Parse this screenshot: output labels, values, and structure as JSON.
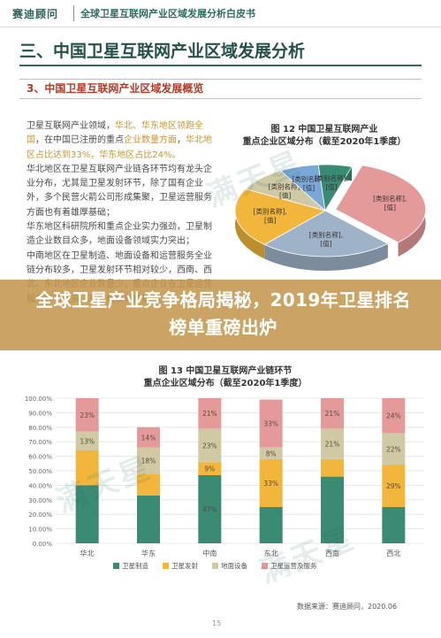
{
  "header": {
    "brand": "赛迪顾问",
    "title": "全球卫星互联网产业区域发展分析白皮书"
  },
  "section_title": "三、中国卫星互联网产业区域发展分析",
  "subsection_title": "3、中国卫星互联网产业区域发展概览",
  "body": {
    "p1_a": "卫星互联网产业领域，",
    "p1_b": "华北、华东地区领跑全国",
    "p1_c": "，在中国已注册的重点",
    "p1_d": "企业数量方面",
    "p1_e": "，",
    "p1_f": "华北地区占比达到33%，华东地区占比24%。",
    "p2": "华北地区在卫星互联网产业链各环节均有龙头企业分布，尤其是卫星发射环节，除了国有企业外，多个民营火箭公司形成集聚，卫星运营服务方面也有着雄厚基础；",
    "p3": "华东地区科研院所和重点企业实力强劲，卫星制造企业数目众多，地面设备领域实力突出；",
    "p4": "中南地区在卫星制造、地面设备和运营服务全业链分布较多，卫星发射环节相对较少，西南、西北、东北地区企业数量少，重点企业在卫星运营服务环节较多，产业规模有待提升。"
  },
  "banner": {
    "text": "全球卫星产业竞争格局揭秘，2019年卫星排名榜单重磅出炉"
  },
  "watermarks": {
    "text": "满天星"
  },
  "chart_data": [
    {
      "type": "pie",
      "title": "图 12  中国卫星互联网产业\n重点企业区域分布（截至2020年1季度）",
      "labels": [
        "[类别名称], [值]",
        "[类别名称], [值]",
        "[类别名称], [值]",
        "[类别名称], [值]",
        "[类别名称], [值]",
        "[类别名称], [值]"
      ],
      "values": [
        33,
        24,
        21,
        9,
        7,
        6
      ],
      "colors": [
        "#e59a9a",
        "#9fb3c8",
        "#f1b63b",
        "#cfc9a4",
        "#7aa7d8",
        "#3a8a74"
      ],
      "note": "labels shown as placeholders in the original"
    },
    {
      "type": "bar",
      "stacked": true,
      "percent": true,
      "title": "图 13  中国卫星互联网产业链环节\n重点企业区域分布（截至2020年1季度）",
      "categories": [
        "华北",
        "华东",
        "中南",
        "东北",
        "西南",
        "西北"
      ],
      "ylim": [
        0,
        100
      ],
      "yticks": [
        "0.00%",
        "10.00%",
        "20.00%",
        "30.00%",
        "40.00%",
        "50.00%",
        "60.00%",
        "70.00%",
        "80.00%",
        "90.00%",
        "100.00%"
      ],
      "series": [
        {
          "name": "卫星制造",
          "values": [
            40,
            33,
            47,
            25,
            46,
            25
          ],
          "color": "#3a8a74"
        },
        {
          "name": "卫星发射",
          "values": [
            24,
            15,
            9,
            33,
            12,
            29
          ],
          "color": "#f1b63b"
        },
        {
          "name": "地面设备",
          "values": [
            13,
            18,
            23,
            8,
            21,
            22
          ],
          "color": "#cfc9a4"
        },
        {
          "name": "卫星运营及服务",
          "values": [
            23,
            14,
            21,
            33,
            21,
            24
          ],
          "color": "#e59a9a"
        }
      ],
      "data_labels": {
        "卫星制造": [
          "",
          "",
          "47%",
          "",
          "",
          ""
        ],
        "卫星发射": [
          "",
          "",
          "9%",
          "33%",
          "",
          "29%"
        ],
        "地面设备": [
          "13%",
          "18%",
          "23%",
          "8%",
          "21%",
          "22%"
        ],
        "卫星运营及服务": [
          "23%",
          "14%",
          "21%",
          "33%",
          "21%",
          "24%"
        ]
      }
    }
  ],
  "legend": [
    "卫星制造",
    "卫星发射",
    "地面设备",
    "卫星运营及服务"
  ],
  "source": "数据来源：赛迪顾问，2020.06",
  "page_number": "15"
}
